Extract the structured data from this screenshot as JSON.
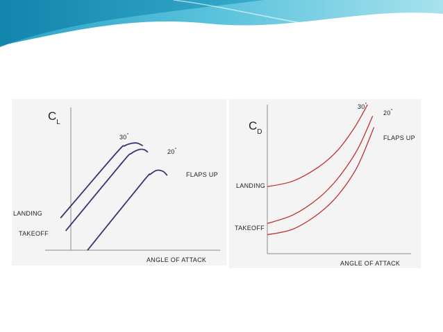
{
  "chart_data": [
    {
      "type": "line",
      "title": "",
      "ylabel": "C",
      "ylabel_subscript": "L",
      "xlabel": "ANGLE OF ATTACK",
      "xlim": [
        0,
        10
      ],
      "ylim": [
        0,
        10
      ],
      "grid": false,
      "line_color": "#3a3270",
      "side_labels": [
        "LANDING",
        "TAKEOFF"
      ],
      "series": [
        {
          "name": "30°",
          "display": "30",
          "x": [
            -0.8,
            3.5,
            4.2,
            4.8,
            5.2,
            5.6
          ],
          "y": [
            2.5,
            7.5,
            8.1,
            8.3,
            8.3,
            8.1
          ]
        },
        {
          "name": "20°",
          "display": "20",
          "x": [
            -0.4,
            4.0,
            4.7,
            5.3,
            5.7,
            6.0
          ],
          "y": [
            1.5,
            6.8,
            7.5,
            7.8,
            7.8,
            7.6
          ]
        },
        {
          "name": "FLAPS UP",
          "display": "FLAPS UP",
          "x": [
            1.3,
            5.6,
            6.2,
            6.7,
            7.2,
            7.5
          ],
          "y": [
            0.0,
            5.3,
            5.9,
            6.2,
            6.1,
            5.8
          ]
        }
      ]
    },
    {
      "type": "line",
      "title": "",
      "ylabel": "C",
      "ylabel_subscript": "D",
      "xlabel": "ANGLE OF ATTACK",
      "xlim": [
        0,
        10
      ],
      "ylim": [
        0,
        10
      ],
      "grid": false,
      "line_color": "#c0302f",
      "side_labels": [
        "LANDING",
        "TAKEOFF"
      ],
      "series": [
        {
          "name": "30°",
          "display": "30",
          "x": [
            0.0,
            2.0,
            4.0,
            5.5,
            6.8,
            7.8
          ],
          "y": [
            4.2,
            4.6,
            5.6,
            6.8,
            8.4,
            10.0
          ]
        },
        {
          "name": "20°",
          "display": "20",
          "x": [
            0.0,
            2.0,
            4.0,
            5.5,
            7.0,
            8.2
          ],
          "y": [
            1.6,
            2.2,
            3.4,
            4.8,
            6.8,
            9.2
          ]
        },
        {
          "name": "FLAPS UP",
          "display": "FLAPS UP",
          "x": [
            0.0,
            2.0,
            4.0,
            5.5,
            7.0,
            8.3
          ],
          "y": [
            0.8,
            1.2,
            2.3,
            3.6,
            5.6,
            8.4
          ]
        }
      ]
    }
  ],
  "labels": {
    "degree_symbol": "°"
  }
}
